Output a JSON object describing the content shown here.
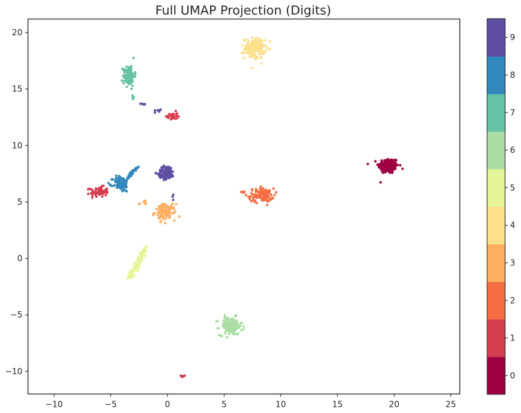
{
  "chart_data": {
    "type": "scatter",
    "title": "Full UMAP Projection (Digits)",
    "xlabel": "",
    "ylabel": "",
    "xlim": [
      -12.3,
      25.8
    ],
    "ylim": [
      -12.0,
      21.2
    ],
    "x_ticks": [
      -10,
      -5,
      0,
      5,
      10,
      15,
      20,
      25
    ],
    "y_ticks": [
      -10,
      -5,
      0,
      5,
      10,
      15,
      20
    ],
    "grid": false,
    "colorbar": {
      "ticks": [
        "0",
        "1",
        "2",
        "3",
        "4",
        "5",
        "6",
        "7",
        "8",
        "9"
      ],
      "colors": [
        "#9e0142",
        "#d53e4f",
        "#f46d43",
        "#fdae61",
        "#fee08b",
        "#e6f598",
        "#abdda4",
        "#66c2a5",
        "#3288bd",
        "#5e4fa2"
      ],
      "placement": "right"
    },
    "clusters": [
      {
        "label": "0",
        "color": "#9e0142",
        "x": 19.5,
        "y": 8.2,
        "sx": 0.45,
        "sy": 0.35,
        "n": 180
      },
      {
        "label": "1",
        "color": "#d53e4f",
        "x": -6.0,
        "y": 5.9,
        "sx": 0.4,
        "sy": 0.22,
        "n": 70
      },
      {
        "label": "1",
        "color": "#d53e4f",
        "x": 0.4,
        "y": 12.6,
        "sx": 0.25,
        "sy": 0.2,
        "n": 30
      },
      {
        "label": "1",
        "color": "#d53e4f",
        "x": 1.4,
        "y": -10.4,
        "sx": 0.1,
        "sy": 0.06,
        "n": 8
      },
      {
        "label": "2",
        "color": "#f46d43",
        "x": 8.3,
        "y": 5.6,
        "sx": 0.55,
        "sy": 0.3,
        "n": 110
      },
      {
        "label": "2",
        "color": "#f46d43",
        "x": 6.7,
        "y": 5.85,
        "sx": 0.15,
        "sy": 0.05,
        "n": 5
      },
      {
        "label": "3",
        "color": "#fdae61",
        "x": -0.2,
        "y": 4.1,
        "sx": 0.45,
        "sy": 0.35,
        "n": 110
      },
      {
        "label": "3",
        "color": "#fdae61",
        "x": -2.0,
        "y": 4.95,
        "sx": 0.25,
        "sy": 0.12,
        "n": 8
      },
      {
        "label": "4",
        "color": "#fee08b",
        "x": 7.7,
        "y": 18.6,
        "sx": 0.45,
        "sy": 0.45,
        "n": 170
      },
      {
        "label": "6",
        "color": "#abdda4",
        "x": 5.6,
        "y": -6.0,
        "sx": 0.5,
        "sy": 0.4,
        "n": 150
      },
      {
        "label": "7",
        "color": "#66c2a5",
        "x": -3.4,
        "y": 16.2,
        "sx": 0.25,
        "sy": 0.45,
        "n": 120
      },
      {
        "label": "7",
        "color": "#66c2a5",
        "x": -3.1,
        "y": 14.3,
        "sx": 0.06,
        "sy": 0.1,
        "n": 4
      },
      {
        "label": "8",
        "color": "#3288bd",
        "x": -4.1,
        "y": 6.6,
        "sx": 0.35,
        "sy": 0.35,
        "n": 90
      },
      {
        "label": "9",
        "color": "#5e4fa2",
        "x": -0.1,
        "y": 7.6,
        "sx": 0.35,
        "sy": 0.3,
        "n": 110
      },
      {
        "label": "9",
        "color": "#5e4fa2",
        "x": -2.1,
        "y": 13.7,
        "sx": 0.12,
        "sy": 0.05,
        "n": 5
      },
      {
        "label": "9",
        "color": "#5e4fa2",
        "x": -0.8,
        "y": 13.1,
        "sx": 0.15,
        "sy": 0.08,
        "n": 6
      },
      {
        "label": "9",
        "color": "#5e4fa2",
        "x": 0.5,
        "y": 5.5,
        "sx": 0.03,
        "sy": 0.15,
        "n": 3
      }
    ],
    "line_clusters": [
      {
        "label": "8",
        "color": "#3288bd",
        "from": [
          -3.6,
          7.0
        ],
        "to": [
          -2.6,
          8.2
        ],
        "n": 35,
        "jitter": 0.12
      },
      {
        "label": "5",
        "color": "#e6f598",
        "from": [
          -3.3,
          -1.7
        ],
        "to": [
          -1.9,
          0.9
        ],
        "n": 140,
        "jitter": 0.25
      }
    ]
  }
}
